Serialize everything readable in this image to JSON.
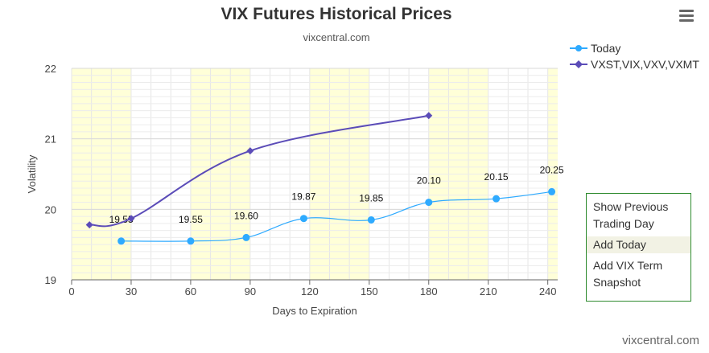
{
  "header": {
    "title": "VIX Futures Historical Prices",
    "subtitle": "vixcentral.com"
  },
  "menu": {
    "icon": "hamburger-menu-icon"
  },
  "legend": [
    {
      "label": "Today",
      "color": "#2eaaff",
      "symbol": "circle"
    },
    {
      "label": "VXST,VIX,VXV,VXMT",
      "color": "#5b4cb8",
      "symbol": "diamond"
    }
  ],
  "side_panel": {
    "buttons": [
      "Show Previous Trading Day",
      "Add Today",
      "Add VIX Term Snapshot"
    ]
  },
  "credit": "vixcentral.com",
  "chart_data": {
    "type": "line",
    "xlabel": "Days to Expiration",
    "ylabel": "Volatility",
    "xlim": [
      0,
      245
    ],
    "ylim": [
      19,
      22
    ],
    "x_ticks": [
      0,
      30,
      60,
      90,
      120,
      150,
      180,
      210,
      240
    ],
    "y_ticks": [
      19,
      20,
      21,
      22
    ],
    "grid": true,
    "legend_position": "top-right",
    "shaded_bands": [
      [
        0,
        30
      ],
      [
        60,
        90
      ],
      [
        120,
        150
      ],
      [
        180,
        210
      ],
      [
        240,
        245
      ]
    ],
    "series": [
      {
        "name": "Today",
        "color": "#2eaaff",
        "marker": "circle",
        "x": [
          25,
          60,
          88,
          117,
          151,
          180,
          214,
          242
        ],
        "y": [
          19.55,
          19.55,
          19.6,
          19.87,
          19.85,
          20.1,
          20.15,
          20.25
        ],
        "labels": [
          "19.55",
          "19.55",
          "19.60",
          "19.87",
          "19.85",
          "20.10",
          "20.15",
          "20.25"
        ]
      },
      {
        "name": "VXST,VIX,VXV,VXMT",
        "color": "#5b4cb8",
        "marker": "diamond",
        "x": [
          9,
          30,
          90,
          180
        ],
        "y": [
          19.78,
          19.87,
          20.83,
          21.33
        ]
      }
    ]
  }
}
